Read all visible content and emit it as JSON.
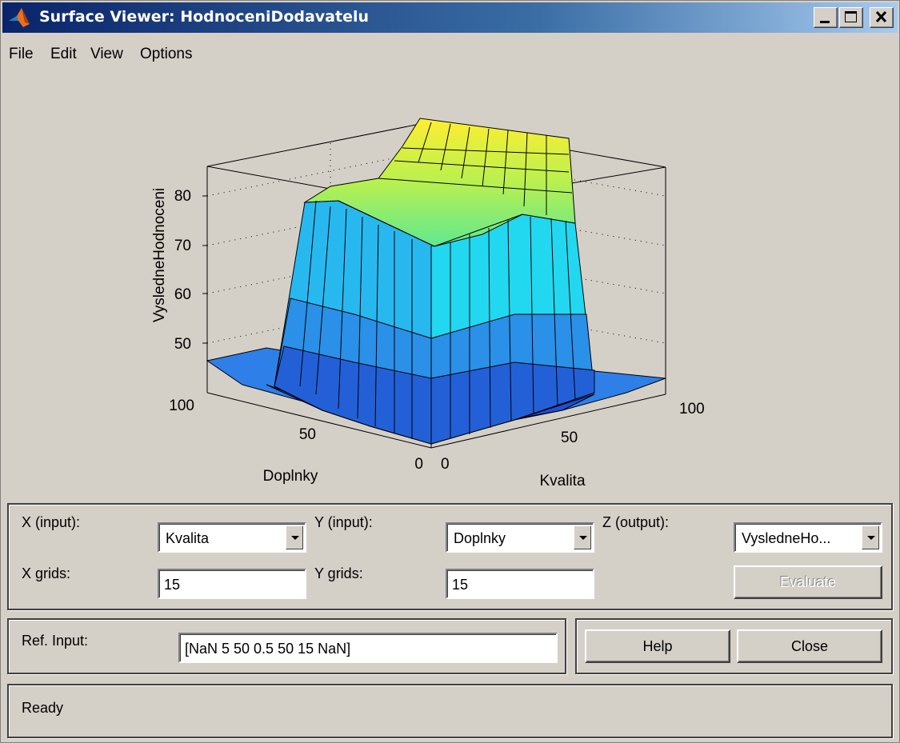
{
  "window": {
    "title": "Surface Viewer: HodnoceniDodavatelu"
  },
  "menu": [
    "File",
    "Edit",
    "View",
    "Options"
  ],
  "plot": {
    "zlabel": "VysledneHodnoceni",
    "xlabel": "Kvalita",
    "ylabel": "Doplnky",
    "zticks": [
      "80",
      "70",
      "60",
      "50"
    ],
    "xticks": [
      "0",
      "50",
      "100"
    ],
    "yticks": [
      "0",
      "50",
      "100"
    ]
  },
  "controls": {
    "x_input_label": "X (input):",
    "x_input_value": "Kvalita",
    "y_input_label": "Y (input):",
    "y_input_value": "Doplnky",
    "z_output_label": "Z (output):",
    "z_output_value": "VysledneHo...",
    "x_grids_label": "X grids:",
    "x_grids_value": "15",
    "y_grids_label": "Y grids:",
    "y_grids_value": "15",
    "evaluate_label": "Evaluate",
    "ref_input_label": "Ref. Input:",
    "ref_input_value": "[NaN 5 50 0.5 50 15 NaN]",
    "help_label": "Help",
    "close_label": "Close",
    "status": "Ready"
  }
}
